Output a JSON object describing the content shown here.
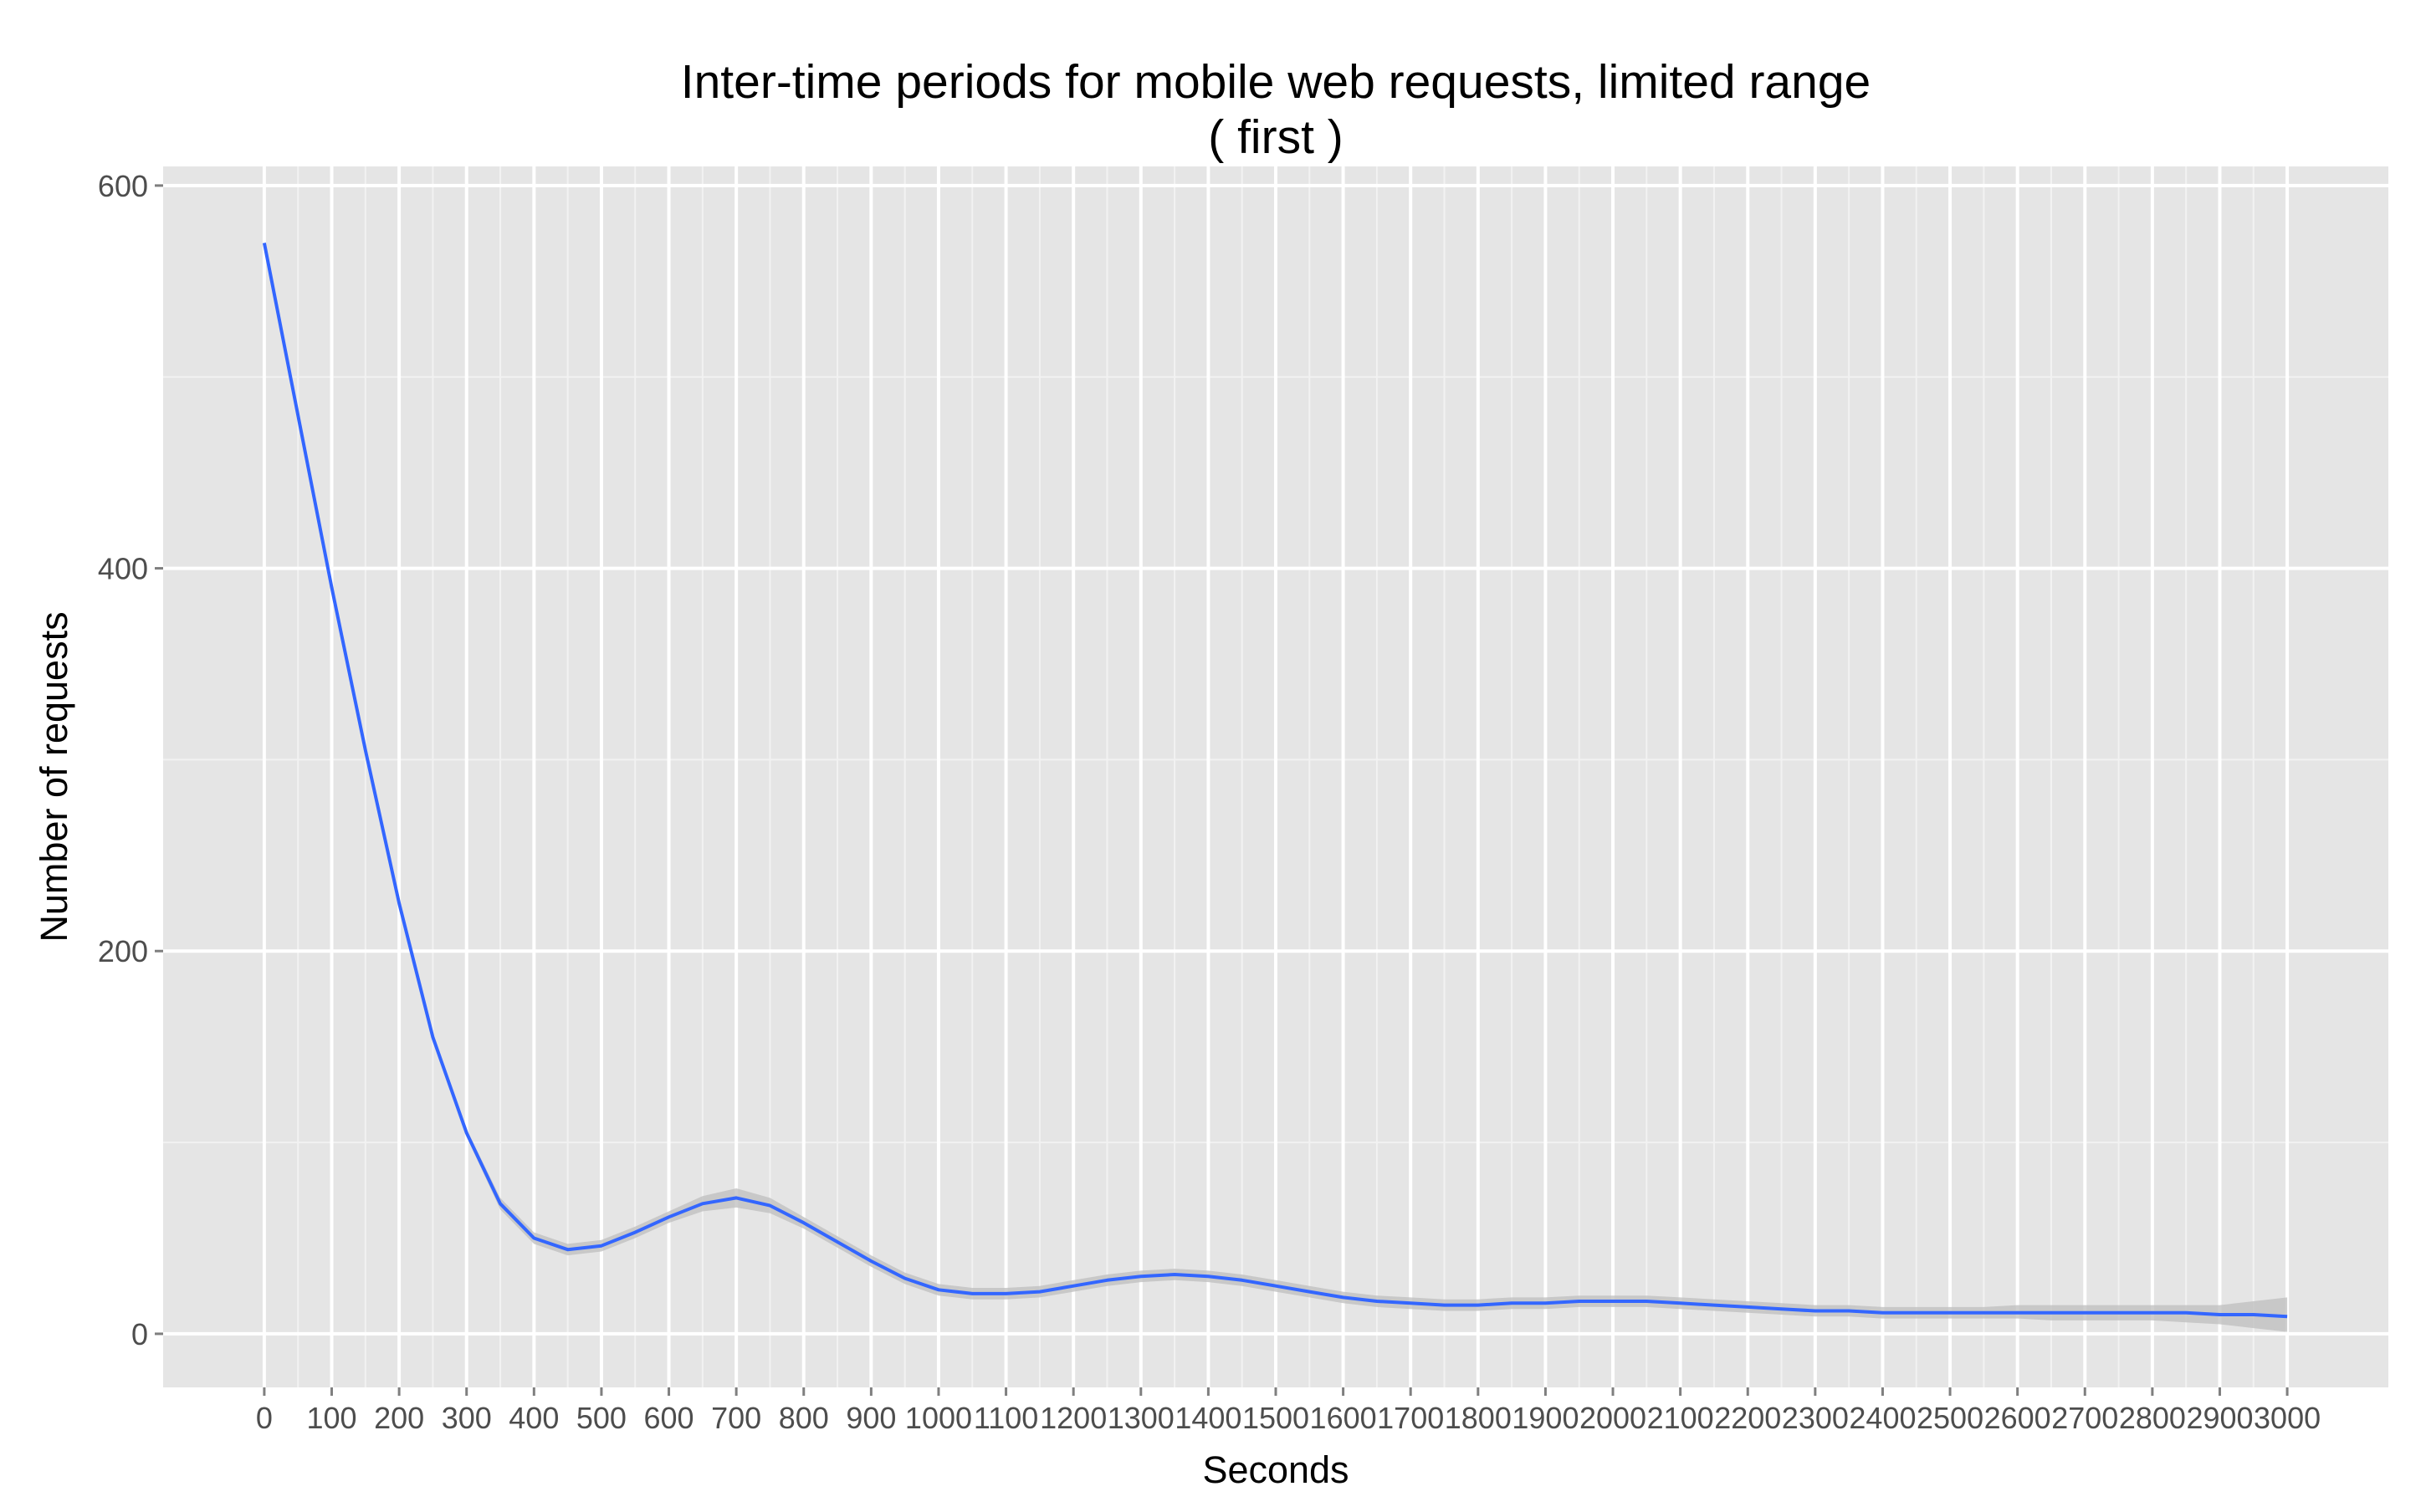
{
  "chart_data": {
    "type": "line",
    "title": "Inter-time periods for mobile web requests, limited range",
    "subtitle": "( first )",
    "xlabel": "Seconds",
    "ylabel": "Number of requests",
    "xlim": [
      -150,
      3150
    ],
    "ylim": [
      -28,
      610
    ],
    "x_ticks": [
      0,
      100,
      200,
      300,
      400,
      500,
      600,
      700,
      800,
      900,
      1000,
      1100,
      1200,
      1300,
      1400,
      1500,
      1600,
      1700,
      1800,
      1900,
      2000,
      2100,
      2200,
      2300,
      2400,
      2500,
      2600,
      2700,
      2800,
      2900,
      3000
    ],
    "x_tick_labels": [
      "0",
      "100",
      "200",
      "300",
      "400",
      "500",
      "600",
      "700",
      "800",
      "900",
      "1000",
      "1100",
      "1200",
      "1300",
      "1400",
      "1500",
      "1600",
      "1700",
      "1800",
      "1900",
      "2000",
      "2100",
      "2200",
      "2300",
      "2400",
      "2500",
      "2600",
      "2700",
      "2800",
      "2900",
      "3000"
    ],
    "y_ticks": [
      0,
      200,
      400,
      600
    ],
    "y_tick_labels": [
      "0",
      "200",
      "400",
      "600"
    ],
    "grid": true,
    "legend": "none",
    "colors": {
      "panel": "#e5e5e5",
      "grid_major": "#ffffff",
      "grid_minor": "#f2f2f2",
      "line": "#3366ff",
      "ribbon": "#bdbdbd"
    },
    "series": [
      {
        "x": [
          0,
          50,
          100,
          150,
          200,
          250,
          300,
          350,
          400,
          450,
          500,
          550,
          600,
          650,
          700,
          750,
          800,
          850,
          900,
          950,
          1000,
          1050,
          1100,
          1150,
          1200,
          1250,
          1300,
          1350,
          1400,
          1450,
          1500,
          1550,
          1600,
          1650,
          1700,
          1750,
          1800,
          1850,
          1900,
          1950,
          2000,
          2050,
          2100,
          2150,
          2200,
          2250,
          2300,
          2350,
          2400,
          2450,
          2500,
          2550,
          2600,
          2650,
          2700,
          2750,
          2800,
          2850,
          2900,
          2950,
          3000
        ],
        "y": [
          570,
          480,
          390,
          305,
          225,
          155,
          105,
          68,
          50,
          44,
          46,
          53,
          61,
          68,
          71,
          67,
          58,
          48,
          38,
          29,
          23,
          21,
          21,
          22,
          25,
          28,
          30,
          31,
          30,
          28,
          25,
          22,
          19,
          17,
          16,
          15,
          15,
          16,
          16,
          17,
          17,
          17,
          16,
          15,
          14,
          13,
          12,
          12,
          11,
          11,
          11,
          11,
          11,
          11,
          11,
          11,
          11,
          11,
          10,
          10,
          9
        ],
        "lower": [
          570,
          480,
          390,
          304,
          224,
          154,
          103,
          65,
          47,
          41,
          43,
          50,
          58,
          64,
          66,
          63,
          55,
          45,
          35,
          26,
          20,
          18,
          18,
          19,
          22,
          25,
          27,
          28,
          27,
          25,
          22,
          19,
          16,
          14,
          13,
          12,
          12,
          13,
          13,
          14,
          14,
          14,
          13,
          12,
          11,
          10,
          9,
          9,
          8,
          8,
          8,
          8,
          8,
          7,
          7,
          7,
          7,
          6,
          5,
          3,
          1
        ],
        "upper": [
          570,
          480,
          390,
          306,
          226,
          156,
          107,
          71,
          53,
          47,
          49,
          56,
          64,
          72,
          76,
          71,
          61,
          51,
          41,
          32,
          26,
          24,
          24,
          25,
          28,
          31,
          33,
          34,
          33,
          31,
          28,
          25,
          22,
          20,
          19,
          18,
          18,
          19,
          19,
          20,
          20,
          20,
          19,
          18,
          17,
          16,
          15,
          15,
          14,
          14,
          14,
          14,
          15,
          15,
          15,
          15,
          15,
          15,
          15,
          17,
          19
        ]
      }
    ]
  }
}
